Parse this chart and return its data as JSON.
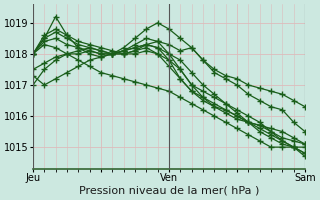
{
  "bg_color": "#cce8e0",
  "plot_bg_color": "#cce8e0",
  "grid_color": "#ddbbbb",
  "line_color": "#1a5e1a",
  "marker": "+",
  "markersize": 4,
  "markeredgewidth": 1.0,
  "linewidth": 0.9,
  "ylim": [
    1014.3,
    1019.6
  ],
  "yticks": [
    1015,
    1016,
    1017,
    1018,
    1019
  ],
  "xlabel": "Pression niveau de la mer( hPa )",
  "xlabel_fontsize": 8,
  "tick_fontsize": 7,
  "xtick_labels": [
    "Jeu",
    "",
    "Ven",
    "",
    "Sam"
  ],
  "xtick_positions": [
    0,
    6,
    12,
    18,
    24
  ],
  "n_points": 25,
  "series": [
    [
      1018.0,
      1018.3,
      1018.2,
      1018.0,
      1017.8,
      1017.6,
      1017.4,
      1017.3,
      1017.2,
      1017.1,
      1017.0,
      1016.9,
      1016.8,
      1016.6,
      1016.4,
      1016.2,
      1016.0,
      1015.8,
      1015.6,
      1015.4,
      1015.2,
      1015.0,
      1015.0,
      1015.0,
      1014.8
    ],
    [
      1018.0,
      1018.5,
      1018.7,
      1018.5,
      1018.3,
      1018.2,
      1018.1,
      1018.0,
      1018.0,
      1018.1,
      1018.2,
      1018.0,
      1017.8,
      1017.5,
      1017.0,
      1016.6,
      1016.3,
      1016.1,
      1015.9,
      1015.8,
      1015.7,
      1015.5,
      1015.3,
      1015.2,
      1015.1
    ],
    [
      1018.0,
      1018.6,
      1018.8,
      1018.6,
      1018.4,
      1018.3,
      1018.2,
      1018.1,
      1018.0,
      1018.1,
      1018.3,
      1018.2,
      1018.0,
      1017.8,
      1017.4,
      1017.0,
      1016.7,
      1016.4,
      1016.1,
      1015.8,
      1015.5,
      1015.3,
      1015.1,
      1015.0,
      1015.0
    ],
    [
      1017.3,
      1017.0,
      1017.2,
      1017.4,
      1017.6,
      1017.8,
      1017.9,
      1018.0,
      1018.1,
      1018.2,
      1018.3,
      1018.2,
      1017.8,
      1017.2,
      1016.8,
      1016.5,
      1016.3,
      1016.2,
      1016.0,
      1015.8,
      1015.7,
      1015.6,
      1015.5,
      1015.3,
      1015.1
    ],
    [
      1018.0,
      1018.5,
      1019.2,
      1018.6,
      1018.2,
      1018.0,
      1017.9,
      1018.0,
      1018.1,
      1018.3,
      1018.5,
      1018.4,
      1018.0,
      1017.5,
      1017.0,
      1016.8,
      1016.6,
      1016.4,
      1016.2,
      1016.0,
      1015.8,
      1015.5,
      1015.2,
      1015.0,
      1014.7
    ],
    [
      1017.0,
      1017.5,
      1017.8,
      1018.0,
      1018.1,
      1018.2,
      1018.1,
      1018.0,
      1018.2,
      1018.5,
      1018.8,
      1019.0,
      1018.8,
      1018.5,
      1018.2,
      1017.8,
      1017.4,
      1017.2,
      1017.0,
      1016.7,
      1016.5,
      1016.3,
      1016.2,
      1015.8,
      1015.5
    ],
    [
      1018.0,
      1018.4,
      1018.5,
      1018.3,
      1018.2,
      1018.1,
      1018.0,
      1018.0,
      1018.1,
      1018.2,
      1018.3,
      1018.4,
      1018.3,
      1018.1,
      1018.2,
      1017.8,
      1017.5,
      1017.3,
      1017.2,
      1017.0,
      1016.9,
      1016.8,
      1016.7,
      1016.5,
      1016.3
    ],
    [
      1017.5,
      1017.7,
      1017.9,
      1018.0,
      1018.0,
      1018.1,
      1018.0,
      1018.0,
      1018.0,
      1018.0,
      1018.1,
      1018.0,
      1017.6,
      1017.2,
      1016.8,
      1016.6,
      1016.4,
      1016.2,
      1016.0,
      1015.8,
      1015.6,
      1015.4,
      1015.2,
      1015.0,
      1014.8
    ]
  ],
  "vline_positions": [
    0,
    12,
    24
  ],
  "vline_color": "#555555",
  "border_color": "#336633",
  "spine_bottom_color": "#336633"
}
